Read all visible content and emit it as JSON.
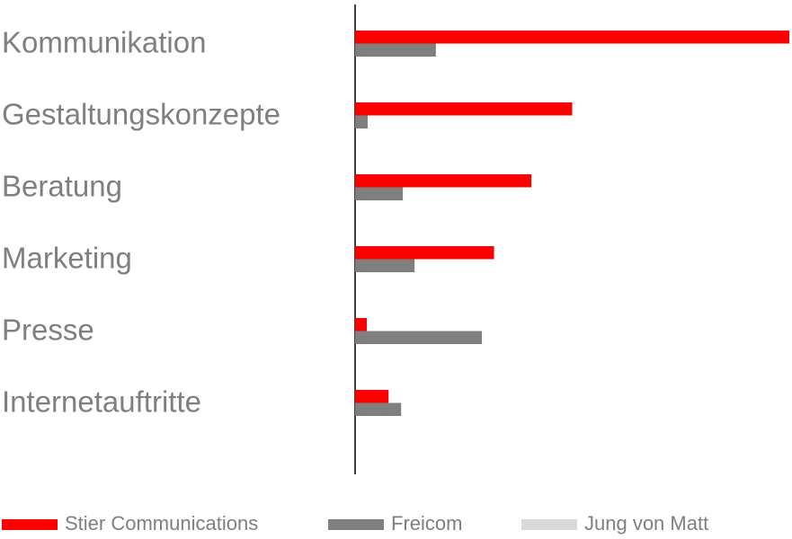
{
  "chart_data": {
    "type": "bar",
    "orientation": "horizontal",
    "categories": [
      "Kommunikation",
      "Gestaltungskonzepte",
      "Beratung",
      "Marketing",
      "Presse",
      "Internetauftritte"
    ],
    "series": [
      {
        "name": "Stier Communications",
        "color": "#ff0000",
        "values": [
          100,
          50,
          40.6,
          32,
          2.7,
          7.7
        ]
      },
      {
        "name": "Freicom",
        "color": "#7f7f7f",
        "values": [
          18.6,
          2.9,
          11,
          13.7,
          29.2,
          10.6
        ]
      },
      {
        "name": "Jung von Matt",
        "color": "#d9d9d9",
        "values": [
          0,
          0,
          0,
          0,
          0,
          0
        ]
      }
    ],
    "legend": "bottom"
  }
}
